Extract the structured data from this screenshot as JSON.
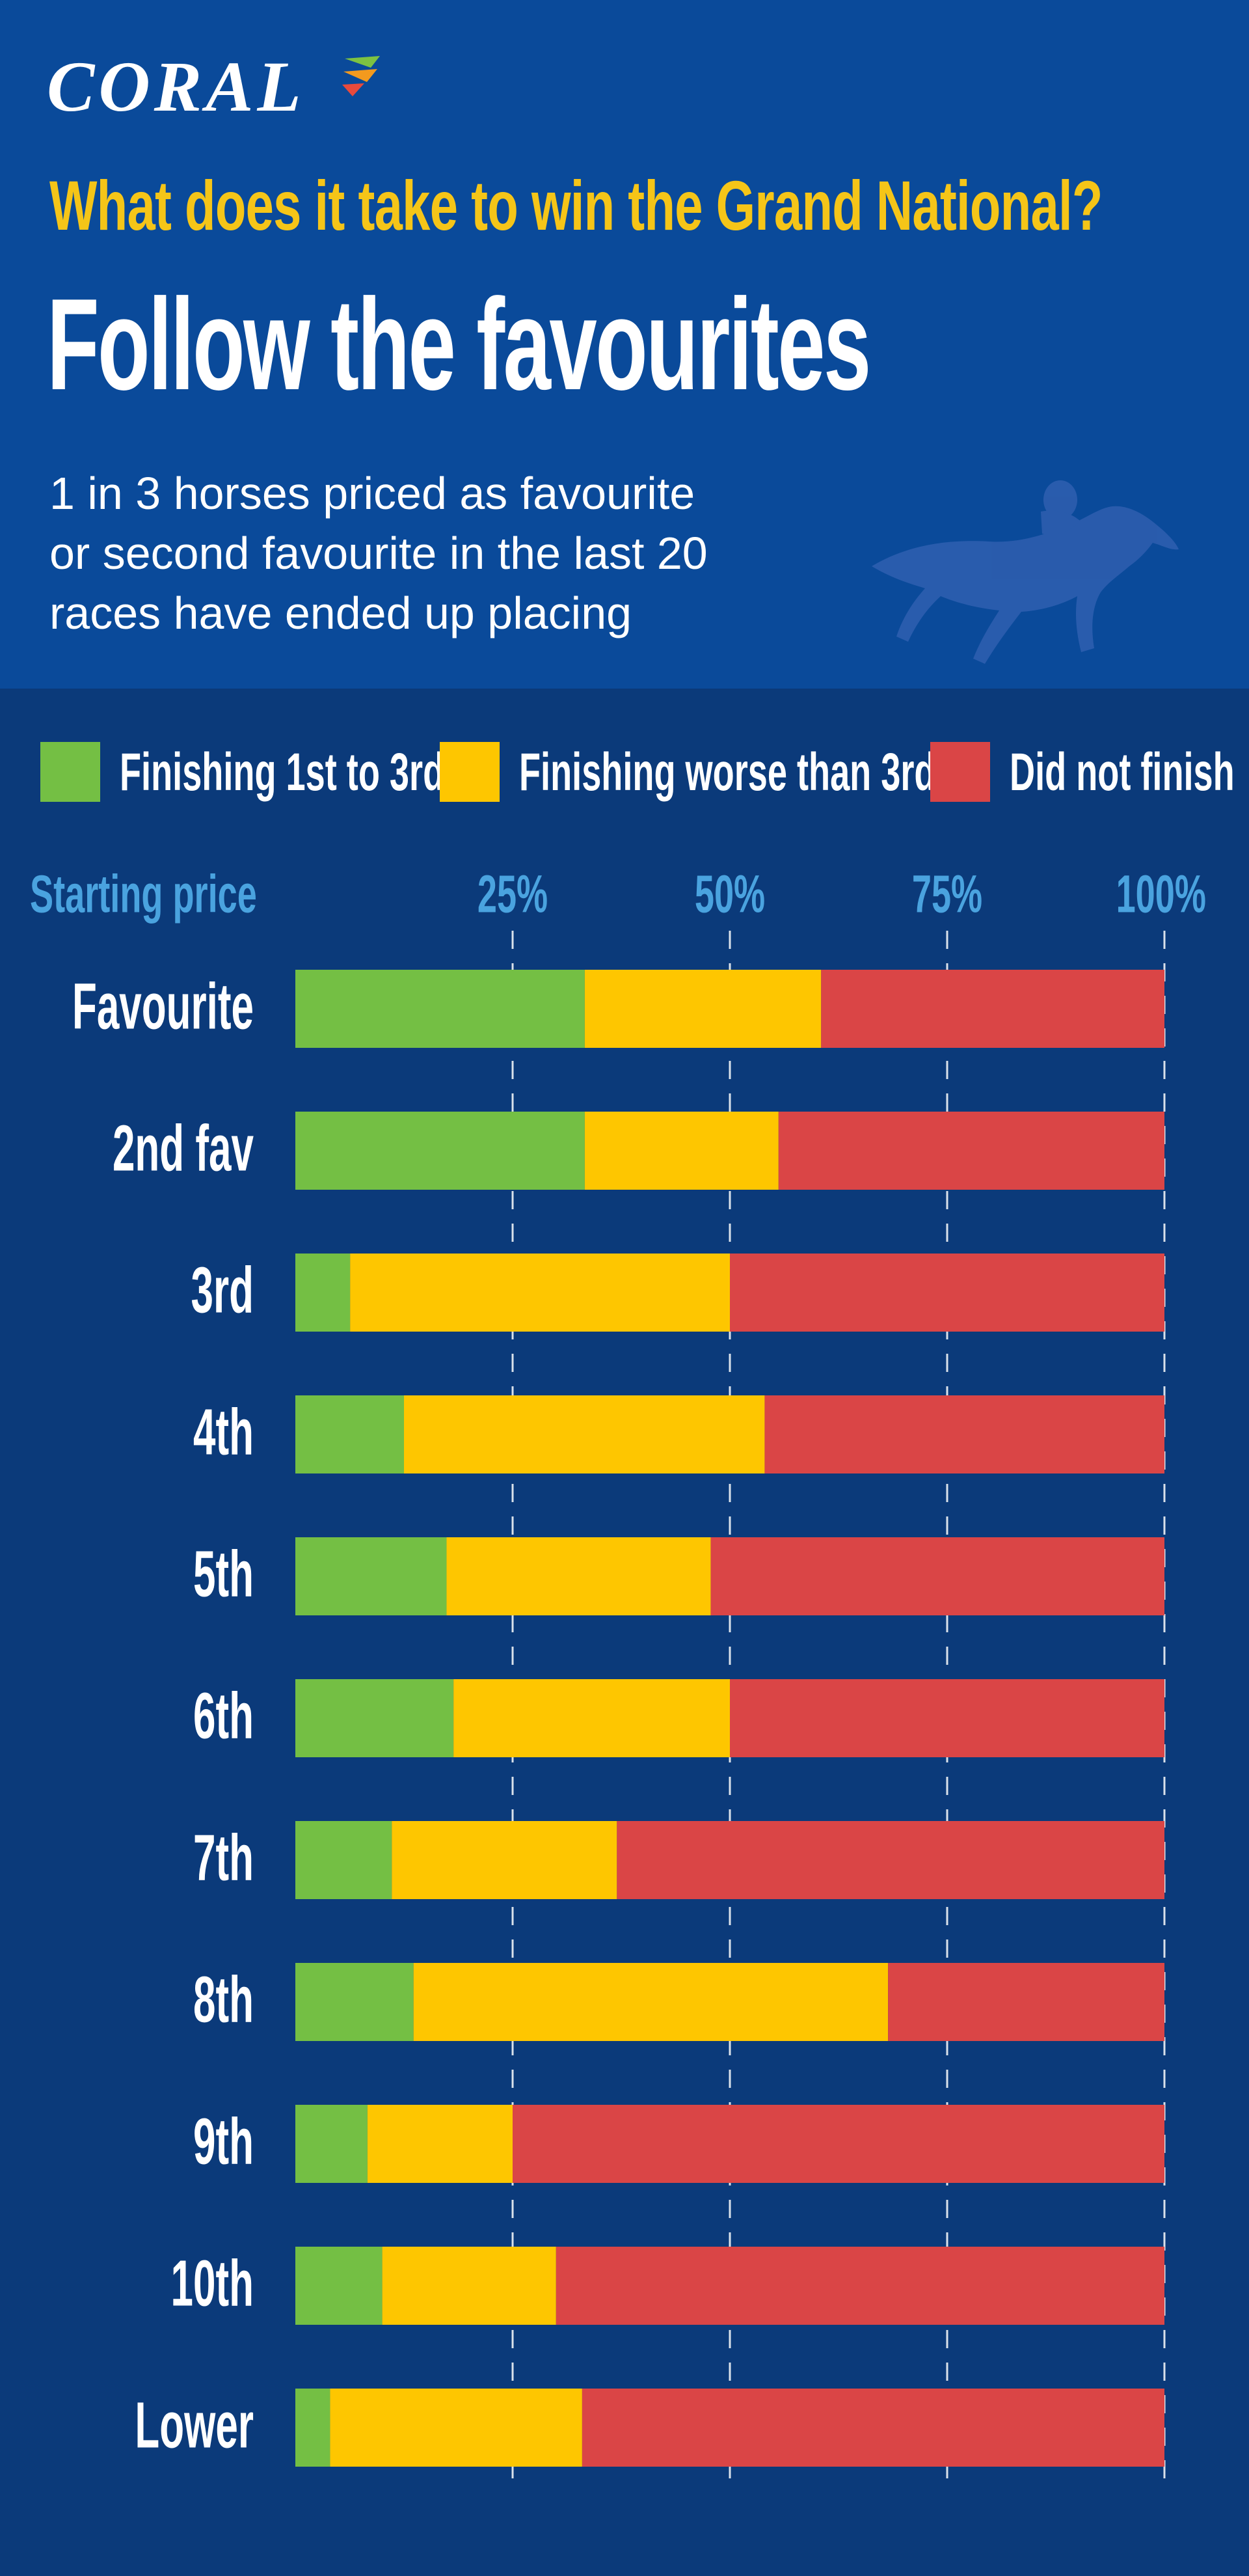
{
  "brand": {
    "logo_text": "CORAL"
  },
  "header": {
    "kicker": "What does it take to win the Grand National?",
    "headline": "Follow the favourites",
    "subtext": "1 in 3 horses priced as favourite\nor second favourite in the last 20\nraces have ended up placing"
  },
  "colors": {
    "header_bg": "#0a4a9a",
    "chart_bg": "#0b3a7a",
    "kicker": "#f5c518",
    "axis_text": "#4aa3df",
    "green": "#74bf44",
    "yellow": "#fec600",
    "red": "#da4546"
  },
  "chart_data": {
    "type": "bar",
    "orientation": "horizontal",
    "stacked": true,
    "title": "Follow the favourites",
    "ylabel": "Starting price",
    "xlim": [
      0,
      100
    ],
    "xticks": [
      25,
      50,
      75,
      100
    ],
    "xtick_labels": [
      "25%",
      "50%",
      "75%",
      "100%"
    ],
    "grid": "vertical dashed",
    "legend_position": "top",
    "categories": [
      "Favourite",
      "2nd fav",
      "3rd",
      "4th",
      "5th",
      "6th",
      "7th",
      "8th",
      "9th",
      "10th",
      "Lower"
    ],
    "series": [
      {
        "name": "Finishing 1st to 3rd",
        "color": "#74bf44",
        "values": [
          33.3,
          33.3,
          6.3,
          12.5,
          17.4,
          18.2,
          11.1,
          13.6,
          8.3,
          10.0,
          4.0
        ]
      },
      {
        "name": "Finishing worse than 3rd",
        "color": "#fec600",
        "values": [
          27.2,
          22.3,
          43.7,
          41.5,
          30.4,
          31.8,
          25.9,
          54.6,
          16.7,
          20.0,
          29.0
        ]
      },
      {
        "name": "Did not finish",
        "color": "#da4546",
        "values": [
          39.5,
          44.4,
          50.0,
          46.0,
          52.2,
          50.0,
          63.0,
          31.8,
          75.0,
          70.0,
          67.0
        ]
      }
    ]
  }
}
